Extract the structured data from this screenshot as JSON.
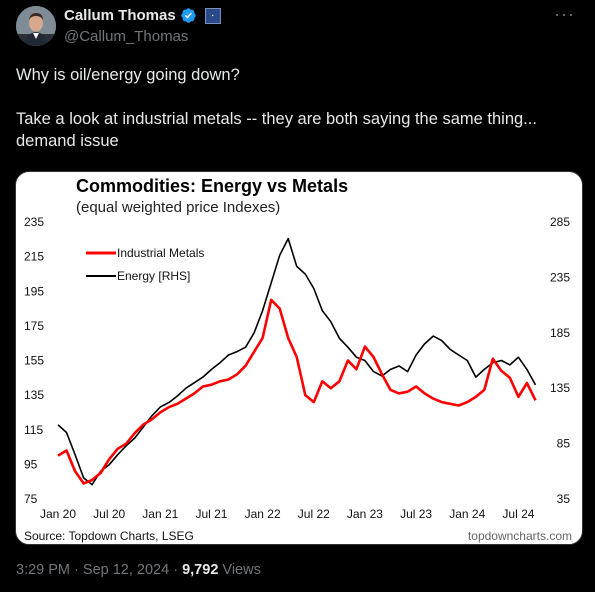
{
  "author": {
    "display_name": "Callum Thomas",
    "handle": "@Callum_Thomas"
  },
  "tweet": {
    "lines": [
      "Why is oil/energy going down?",
      "Take a look at industrial metals -- they are both saying the same thing... demand issue"
    ]
  },
  "meta": {
    "time": "3:29 PM",
    "separator": "·",
    "date": "Sep 12, 2024",
    "views_count": "9,792",
    "views_label": "Views"
  },
  "icons": {
    "verified": "verified-badge-icon",
    "more": "more-options-icon"
  },
  "colors": {
    "verified": "#1d9bf0",
    "metals": "#ff0000",
    "energy": "#000000"
  },
  "chart_data": {
    "type": "line",
    "title": "Commodities: Energy vs Metals",
    "subtitle": "(equal weighted price Indexes)",
    "source": "Source: Topdown Charts, LSEG",
    "watermark": "topdowncharts.com",
    "x_ticks": [
      "Jan 20",
      "Jul 20",
      "Jan 21",
      "Jul 21",
      "Jan 22",
      "Jul 22",
      "Jan 23",
      "Jul 23",
      "Jan 24",
      "Jul 24"
    ],
    "y_left_ticks": [
      "235",
      "215",
      "195",
      "175",
      "155",
      "135",
      "115",
      "95",
      "75"
    ],
    "y_right_ticks": [
      "285",
      "235",
      "185",
      "135",
      "85",
      "35"
    ],
    "ylim_left": [
      75,
      235
    ],
    "ylim_right": [
      35,
      285
    ],
    "x_range": [
      0,
      57
    ],
    "legend_position": "top-left",
    "series": [
      {
        "name": "Industrial Metals",
        "axis": "left",
        "color": "#ff0000",
        "points": [
          [
            0,
            100
          ],
          [
            1,
            103
          ],
          [
            2,
            91
          ],
          [
            3,
            84
          ],
          [
            4,
            86
          ],
          [
            5,
            90
          ],
          [
            6,
            98
          ],
          [
            7,
            104
          ],
          [
            8,
            107
          ],
          [
            9,
            113
          ],
          [
            10,
            118
          ],
          [
            11,
            121
          ],
          [
            12,
            125
          ],
          [
            13,
            128
          ],
          [
            14,
            130
          ],
          [
            15,
            133
          ],
          [
            16,
            136
          ],
          [
            17,
            140
          ],
          [
            18,
            141
          ],
          [
            19,
            143
          ],
          [
            20,
            144
          ],
          [
            21,
            147
          ],
          [
            22,
            152
          ],
          [
            23,
            160
          ],
          [
            24,
            168
          ],
          [
            25,
            190
          ],
          [
            26,
            185
          ],
          [
            27,
            168
          ],
          [
            28,
            157
          ],
          [
            29,
            135
          ],
          [
            30,
            131
          ],
          [
            31,
            143
          ],
          [
            32,
            139
          ],
          [
            33,
            143
          ],
          [
            34,
            155
          ],
          [
            35,
            150
          ],
          [
            36,
            163
          ],
          [
            37,
            157
          ],
          [
            38,
            147
          ],
          [
            39,
            138
          ],
          [
            40,
            136
          ],
          [
            41,
            137
          ],
          [
            42,
            140
          ],
          [
            43,
            136
          ],
          [
            44,
            133
          ],
          [
            45,
            131
          ],
          [
            46,
            130
          ],
          [
            47,
            129
          ],
          [
            48,
            131
          ],
          [
            49,
            134
          ],
          [
            50,
            138
          ],
          [
            51,
            156
          ],
          [
            52,
            149
          ],
          [
            53,
            145
          ],
          [
            54,
            134
          ],
          [
            55,
            142
          ],
          [
            56,
            132
          ]
        ]
      },
      {
        "name": "Energy [RHS]",
        "axis": "right",
        "color": "#000000",
        "points": [
          [
            0,
            102
          ],
          [
            1,
            95
          ],
          [
            2,
            75
          ],
          [
            3,
            54
          ],
          [
            4,
            48
          ],
          [
            5,
            60
          ],
          [
            6,
            66
          ],
          [
            7,
            75
          ],
          [
            8,
            83
          ],
          [
            9,
            90
          ],
          [
            10,
            100
          ],
          [
            11,
            110
          ],
          [
            12,
            118
          ],
          [
            13,
            122
          ],
          [
            14,
            128
          ],
          [
            15,
            135
          ],
          [
            16,
            140
          ],
          [
            17,
            145
          ],
          [
            18,
            152
          ],
          [
            19,
            158
          ],
          [
            20,
            165
          ],
          [
            21,
            168
          ],
          [
            22,
            172
          ],
          [
            23,
            185
          ],
          [
            24,
            205
          ],
          [
            25,
            230
          ],
          [
            26,
            255
          ],
          [
            27,
            270
          ],
          [
            28,
            245
          ],
          [
            29,
            238
          ],
          [
            30,
            225
          ],
          [
            31,
            205
          ],
          [
            32,
            195
          ],
          [
            33,
            180
          ],
          [
            34,
            172
          ],
          [
            35,
            163
          ],
          [
            36,
            160
          ],
          [
            37,
            150
          ],
          [
            38,
            146
          ],
          [
            39,
            152
          ],
          [
            40,
            155
          ],
          [
            41,
            150
          ],
          [
            42,
            165
          ],
          [
            43,
            175
          ],
          [
            44,
            182
          ],
          [
            45,
            178
          ],
          [
            46,
            170
          ],
          [
            47,
            165
          ],
          [
            48,
            160
          ],
          [
            49,
            145
          ],
          [
            50,
            152
          ],
          [
            51,
            158
          ],
          [
            52,
            160
          ],
          [
            53,
            156
          ],
          [
            54,
            163
          ],
          [
            55,
            152
          ],
          [
            56,
            138
          ]
        ]
      }
    ]
  }
}
